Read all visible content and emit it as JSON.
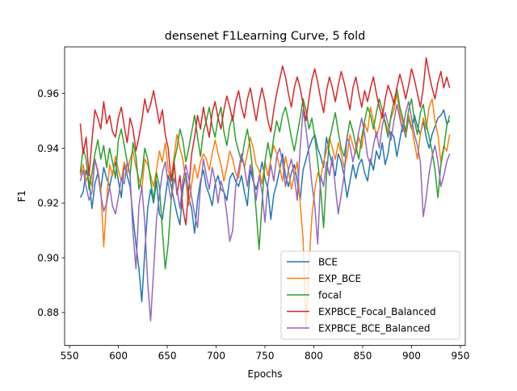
{
  "chart_data": {
    "type": "line",
    "title": "densenet F1Learning Curve, 5 fold",
    "xlabel": "Epochs",
    "ylabel": "F1",
    "xlim": [
      545,
      955
    ],
    "ylim": [
      0.868,
      0.977
    ],
    "x_ticks": [
      550,
      600,
      650,
      700,
      750,
      800,
      850,
      900,
      950
    ],
    "y_ticks": [
      0.88,
      0.9,
      0.92,
      0.94,
      0.96
    ],
    "x_tick_labels": [
      "550",
      "600",
      "650",
      "700",
      "750",
      "800",
      "850",
      "900",
      "950"
    ],
    "y_tick_labels": [
      "0.88",
      "0.90",
      "0.92",
      "0.94",
      "0.96"
    ],
    "grid": false,
    "legend_position": "lower-right",
    "x_start": 561,
    "x_step": 3,
    "series": [
      {
        "name": "BCE",
        "color": "#1f77b4",
        "values": [
          0.922,
          0.924,
          0.932,
          0.928,
          0.918,
          0.927,
          0.931,
          0.925,
          0.933,
          0.929,
          0.926,
          0.931,
          0.935,
          0.928,
          0.922,
          0.934,
          0.93,
          0.926,
          0.915,
          0.905,
          0.896,
          0.884,
          0.902,
          0.918,
          0.925,
          0.92,
          0.928,
          0.916,
          0.914,
          0.922,
          0.93,
          0.926,
          0.921,
          0.916,
          0.912,
          0.925,
          0.931,
          0.922,
          0.918,
          0.909,
          0.921,
          0.928,
          0.932,
          0.926,
          0.923,
          0.919,
          0.927,
          0.93,
          0.925,
          0.924,
          0.921,
          0.929,
          0.931,
          0.928,
          0.926,
          0.93,
          0.924,
          0.919,
          0.932,
          0.928,
          0.925,
          0.929,
          0.935,
          0.929,
          0.925,
          0.914,
          0.923,
          0.927,
          0.932,
          0.938,
          0.93,
          0.926,
          0.931,
          0.934,
          0.928,
          0.921,
          0.932,
          0.936,
          0.94,
          0.943,
          0.945,
          0.94,
          0.937,
          0.933,
          0.944,
          0.938,
          0.934,
          0.93,
          0.938,
          0.935,
          0.93,
          0.922,
          0.928,
          0.934,
          0.929,
          0.934,
          0.936,
          0.931,
          0.928,
          0.936,
          0.932,
          0.939,
          0.936,
          0.942,
          0.934,
          0.938,
          0.946,
          0.944,
          0.937,
          0.943,
          0.949,
          0.944,
          0.951,
          0.947,
          0.952,
          0.948,
          0.945,
          0.95,
          0.944,
          0.94,
          0.945,
          0.948,
          0.951,
          0.952,
          0.954,
          0.949,
          0.95
        ]
      },
      {
        "name": "EXP_BCE",
        "color": "#ff7f0e",
        "values": [
          0.93,
          0.934,
          0.928,
          0.931,
          0.926,
          0.936,
          0.932,
          0.925,
          0.904,
          0.921,
          0.934,
          0.93,
          0.937,
          0.932,
          0.928,
          0.935,
          0.931,
          0.936,
          0.939,
          0.933,
          0.929,
          0.925,
          0.936,
          0.934,
          0.93,
          0.926,
          0.932,
          0.939,
          0.935,
          0.942,
          0.932,
          0.928,
          0.937,
          0.945,
          0.94,
          0.936,
          0.928,
          0.919,
          0.927,
          0.934,
          0.929,
          0.935,
          0.938,
          0.936,
          0.932,
          0.938,
          0.943,
          0.938,
          0.934,
          0.928,
          0.933,
          0.939,
          0.936,
          0.931,
          0.929,
          0.937,
          0.933,
          0.938,
          0.944,
          0.94,
          0.934,
          0.932,
          0.927,
          0.935,
          0.93,
          0.936,
          0.941,
          0.938,
          0.933,
          0.928,
          0.937,
          0.932,
          0.925,
          0.93,
          0.935,
          0.92,
          0.907,
          0.874,
          0.897,
          0.915,
          0.925,
          0.931,
          0.929,
          0.935,
          0.939,
          0.944,
          0.94,
          0.936,
          0.942,
          0.938,
          0.933,
          0.937,
          0.945,
          0.941,
          0.938,
          0.944,
          0.94,
          0.949,
          0.946,
          0.955,
          0.95,
          0.944,
          0.948,
          0.953,
          0.95,
          0.946,
          0.951,
          0.954,
          0.96,
          0.953,
          0.949,
          0.945,
          0.952,
          0.948,
          0.942,
          0.936,
          0.945,
          0.951,
          0.947,
          0.955,
          0.958,
          0.95,
          0.945,
          0.935,
          0.941,
          0.939,
          0.945
        ]
      },
      {
        "name": "focal",
        "color": "#2ca02c",
        "values": [
          0.931,
          0.94,
          0.936,
          0.925,
          0.931,
          0.938,
          0.943,
          0.936,
          0.941,
          0.933,
          0.94,
          0.935,
          0.929,
          0.943,
          0.947,
          0.941,
          0.935,
          0.93,
          0.942,
          0.937,
          0.925,
          0.93,
          0.94,
          0.936,
          0.928,
          0.921,
          0.931,
          0.926,
          0.91,
          0.896,
          0.905,
          0.921,
          0.935,
          0.94,
          0.947,
          0.943,
          0.935,
          0.94,
          0.946,
          0.952,
          0.944,
          0.937,
          0.946,
          0.95,
          0.955,
          0.948,
          0.944,
          0.951,
          0.955,
          0.946,
          0.941,
          0.948,
          0.952,
          0.943,
          0.939,
          0.935,
          0.942,
          0.947,
          0.94,
          0.93,
          0.917,
          0.903,
          0.92,
          0.935,
          0.942,
          0.936,
          0.944,
          0.95,
          0.946,
          0.952,
          0.955,
          0.95,
          0.944,
          0.939,
          0.945,
          0.951,
          0.958,
          0.954,
          0.947,
          0.951,
          0.944,
          0.935,
          0.925,
          0.911,
          0.93,
          0.943,
          0.948,
          0.953,
          0.946,
          0.94,
          0.937,
          0.944,
          0.95,
          0.946,
          0.941,
          0.936,
          0.944,
          0.95,
          0.955,
          0.952,
          0.947,
          0.953,
          0.958,
          0.954,
          0.949,
          0.944,
          0.952,
          0.957,
          0.962,
          0.955,
          0.951,
          0.946,
          0.954,
          0.958,
          0.95,
          0.945,
          0.953,
          0.956,
          0.949,
          0.944,
          0.939,
          0.932,
          0.922,
          0.934,
          0.94,
          0.948,
          0.952
        ]
      },
      {
        "name": "EXPBCE_Focal_Balanced",
        "color": "#d62728",
        "values": [
          0.949,
          0.938,
          0.944,
          0.93,
          0.943,
          0.954,
          0.951,
          0.947,
          0.957,
          0.949,
          0.952,
          0.946,
          0.944,
          0.951,
          0.955,
          0.948,
          0.942,
          0.951,
          0.947,
          0.939,
          0.944,
          0.95,
          0.958,
          0.953,
          0.956,
          0.961,
          0.955,
          0.949,
          0.954,
          0.945,
          0.94,
          0.928,
          0.935,
          0.923,
          0.93,
          0.918,
          0.912,
          0.925,
          0.938,
          0.944,
          0.952,
          0.947,
          0.955,
          0.949,
          0.944,
          0.953,
          0.957,
          0.951,
          0.947,
          0.954,
          0.959,
          0.955,
          0.95,
          0.957,
          0.961,
          0.955,
          0.951,
          0.958,
          0.962,
          0.956,
          0.95,
          0.957,
          0.962,
          0.957,
          0.95,
          0.946,
          0.954,
          0.96,
          0.965,
          0.97,
          0.966,
          0.96,
          0.955,
          0.962,
          0.966,
          0.962,
          0.956,
          0.95,
          0.958,
          0.965,
          0.969,
          0.964,
          0.958,
          0.953,
          0.961,
          0.966,
          0.962,
          0.957,
          0.963,
          0.968,
          0.964,
          0.959,
          0.954,
          0.962,
          0.966,
          0.96,
          0.955,
          0.961,
          0.957,
          0.962,
          0.966,
          0.96,
          0.955,
          0.951,
          0.958,
          0.963,
          0.96,
          0.956,
          0.962,
          0.967,
          0.963,
          0.958,
          0.963,
          0.969,
          0.965,
          0.96,
          0.955,
          0.962,
          0.973,
          0.967,
          0.962,
          0.958,
          0.964,
          0.968,
          0.962,
          0.966,
          0.962
        ]
      },
      {
        "name": "EXPBCE_BCE_Balanced",
        "color": "#9467bd",
        "values": [
          0.928,
          0.932,
          0.926,
          0.921,
          0.924,
          0.936,
          0.931,
          0.923,
          0.917,
          0.92,
          0.926,
          0.919,
          0.916,
          0.922,
          0.929,
          0.927,
          0.935,
          0.93,
          0.909,
          0.896,
          0.919,
          0.926,
          0.913,
          0.891,
          0.877,
          0.895,
          0.914,
          0.923,
          0.931,
          0.935,
          0.927,
          0.921,
          0.929,
          0.925,
          0.918,
          0.928,
          0.934,
          0.929,
          0.922,
          0.916,
          0.911,
          0.926,
          0.936,
          0.93,
          0.925,
          0.933,
          0.928,
          0.92,
          0.928,
          0.924,
          0.916,
          0.906,
          0.91,
          0.926,
          0.932,
          0.938,
          0.933,
          0.926,
          0.934,
          0.929,
          0.921,
          0.93,
          0.924,
          0.913,
          0.927,
          0.934,
          0.928,
          0.937,
          0.94,
          0.935,
          0.926,
          0.932,
          0.936,
          0.93,
          0.921,
          0.94,
          0.954,
          0.947,
          0.938,
          0.927,
          0.919,
          0.905,
          0.93,
          0.926,
          0.935,
          0.93,
          0.937,
          0.926,
          0.916,
          0.923,
          0.93,
          0.944,
          0.941,
          0.935,
          0.94,
          0.946,
          0.951,
          0.945,
          0.937,
          0.934,
          0.941,
          0.946,
          0.94,
          0.948,
          0.953,
          0.949,
          0.943,
          0.95,
          0.956,
          0.951,
          0.946,
          0.953,
          0.957,
          0.951,
          0.945,
          0.941,
          0.935,
          0.915,
          0.922,
          0.931,
          0.937,
          0.941,
          0.935,
          0.926,
          0.93,
          0.935,
          0.938
        ]
      }
    ]
  }
}
